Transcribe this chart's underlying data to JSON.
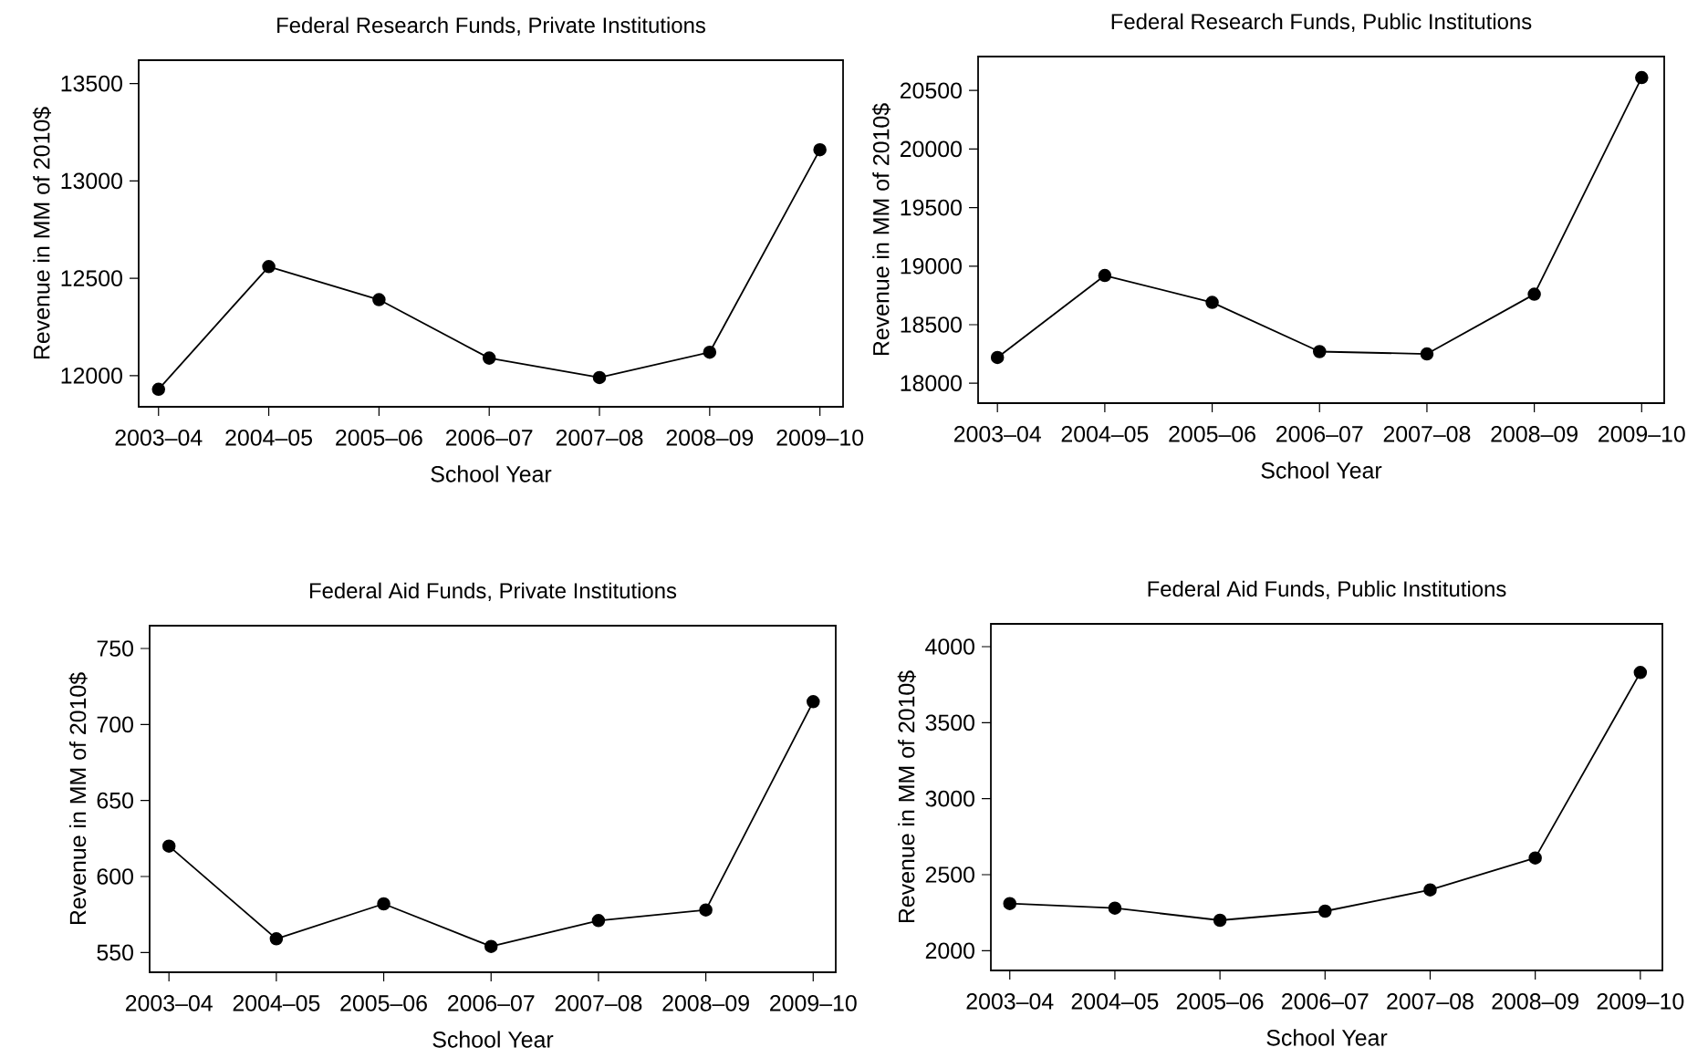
{
  "chart_data": [
    {
      "type": "line",
      "title": "Federal Research Funds, Private Institutions",
      "xlabel": "School Year",
      "ylabel": "Revenue in MM of 2010$",
      "categories": [
        "2003–04",
        "2004–05",
        "2005–06",
        "2006–07",
        "2007–08",
        "2008–09",
        "2009–10"
      ],
      "values": [
        11930,
        12560,
        12390,
        12090,
        11990,
        12120,
        13160
      ],
      "color": "#000000",
      "marker": "circle",
      "ylim": [
        11840,
        13620
      ],
      "yticks": [
        12000,
        12500,
        13000,
        13500
      ]
    },
    {
      "type": "line",
      "title": "Federal Research Funds, Public Institutions",
      "xlabel": "School Year",
      "ylabel": "Revenue in MM of 2010$",
      "categories": [
        "2003–04",
        "2004–05",
        "2005–06",
        "2006–07",
        "2007–08",
        "2008–09",
        "2009–10"
      ],
      "values": [
        18220,
        18920,
        18690,
        18270,
        18250,
        18760,
        20610
      ],
      "color": "#000000",
      "marker": "circle",
      "ylim": [
        17830,
        20790
      ],
      "yticks": [
        18000,
        18500,
        19000,
        19500,
        20000,
        20500
      ]
    },
    {
      "type": "line",
      "title": "Federal Aid Funds, Private Institutions",
      "xlabel": "School Year",
      "ylabel": "Revenue in MM of 2010$",
      "categories": [
        "2003–04",
        "2004–05",
        "2005–06",
        "2006–07",
        "2007–08",
        "2008–09",
        "2009–10"
      ],
      "values": [
        620,
        559,
        582,
        554,
        571,
        578,
        715
      ],
      "color": "#000000",
      "marker": "circle",
      "ylim": [
        537,
        765
      ],
      "yticks": [
        550,
        600,
        650,
        700,
        750
      ]
    },
    {
      "type": "line",
      "title": "Federal Aid Funds, Public Institutions",
      "xlabel": "School Year",
      "ylabel": "Revenue in MM of 2010$",
      "categories": [
        "2003–04",
        "2004–05",
        "2005–06",
        "2006–07",
        "2007–08",
        "2008–09",
        "2009–10"
      ],
      "values": [
        2310,
        2280,
        2200,
        2260,
        2400,
        2610,
        3830
      ],
      "color": "#000000",
      "marker": "circle",
      "ylim": [
        1870,
        4150
      ],
      "yticks": [
        2000,
        2500,
        3000,
        3500,
        4000
      ]
    }
  ]
}
